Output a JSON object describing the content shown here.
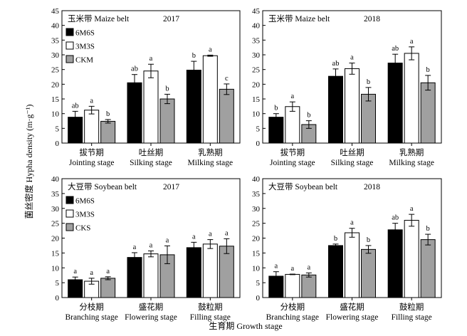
{
  "figure": {
    "ylabel": "菌丝密度 Hypha density (m·g⁻¹)",
    "xlabel": "生育期 Growth stage"
  },
  "colors": {
    "series1": "#000000",
    "series2": "#ffffff",
    "series3": "#a0a0a0"
  },
  "chart_data": [
    {
      "type": "bar",
      "title": "玉米带 Maize belt",
      "year": "2017",
      "categories": [
        [
          "拔节期",
          "Jointing stage"
        ],
        [
          "吐丝期",
          "Silking stage"
        ],
        [
          "乳熟期",
          "Milking stage"
        ]
      ],
      "ylim": [
        0,
        45
      ],
      "yticks": [
        0,
        5,
        10,
        15,
        20,
        25,
        30,
        35,
        40,
        45
      ],
      "legend": "top-left",
      "series": [
        {
          "name": "6M6S",
          "values": [
            8.8,
            20.5,
            24.8
          ],
          "errors": [
            2.0,
            2.8,
            3.0
          ],
          "labels": [
            "ab",
            "ab",
            "b"
          ]
        },
        {
          "name": "3M3S",
          "values": [
            11.2,
            24.5,
            29.7
          ],
          "errors": [
            1.3,
            2.3,
            0.2
          ],
          "labels": [
            "a",
            "a",
            "a"
          ]
        },
        {
          "name": "CKM",
          "values": [
            7.4,
            15.0,
            18.3
          ],
          "errors": [
            0.6,
            1.6,
            1.8
          ],
          "labels": [
            "b",
            "b",
            "c"
          ]
        }
      ]
    },
    {
      "type": "bar",
      "title": "玉米带 Maize belt",
      "year": "2018",
      "categories": [
        [
          "拔节期",
          "Jointing stage"
        ],
        [
          "吐丝期",
          "Silking stage"
        ],
        [
          "乳熟期",
          "Milking stage"
        ]
      ],
      "ylim": [
        0,
        45
      ],
      "yticks": [
        0,
        5,
        10,
        15,
        20,
        25,
        30,
        35,
        40,
        45
      ],
      "legend": "none",
      "series": [
        {
          "name": "6M6S",
          "values": [
            8.8,
            22.7,
            27.2
          ],
          "errors": [
            1.2,
            2.5,
            3.0
          ],
          "labels": [
            "b",
            "ab",
            "ab"
          ]
        },
        {
          "name": "3M3S",
          "values": [
            12.4,
            25.3,
            30.5
          ],
          "errors": [
            1.6,
            1.9,
            2.2
          ],
          "labels": [
            "a",
            "a",
            "a"
          ]
        },
        {
          "name": "CKM",
          "values": [
            6.3,
            16.6,
            20.5
          ],
          "errors": [
            1.3,
            2.3,
            2.5
          ],
          "labels": [
            "b",
            "b",
            "b"
          ]
        }
      ]
    },
    {
      "type": "bar",
      "title": "大豆带 Soybean belt",
      "year": "2017",
      "categories": [
        [
          "分枝期",
          "Branching stage"
        ],
        [
          "盛花期",
          "Flowering stage"
        ],
        [
          "鼓粒期",
          "Filling stage"
        ]
      ],
      "ylim": [
        0,
        40
      ],
      "yticks": [
        0,
        5,
        10,
        15,
        20,
        25,
        30,
        35,
        40
      ],
      "legend": "top-left",
      "series": [
        {
          "name": "6M6S",
          "values": [
            6.0,
            13.5,
            16.8
          ],
          "errors": [
            0.9,
            1.6,
            1.8
          ],
          "labels": [
            "a",
            "a",
            "a"
          ]
        },
        {
          "name": "3M3S",
          "values": [
            5.5,
            14.7,
            18.0
          ],
          "errors": [
            1.0,
            1.0,
            1.5
          ],
          "labels": [
            "a",
            "a",
            "a"
          ]
        },
        {
          "name": "CKS",
          "values": [
            6.5,
            14.4,
            17.3
          ],
          "errors": [
            0.5,
            3.0,
            2.5
          ],
          "labels": [
            "a",
            "a",
            "a"
          ]
        }
      ]
    },
    {
      "type": "bar",
      "title": "大豆带 Soybean belt",
      "year": "2018",
      "categories": [
        [
          "分枝期",
          "Branching stage"
        ],
        [
          "盛花期",
          "Flowering stage"
        ],
        [
          "鼓粒期",
          "Filling stage"
        ]
      ],
      "ylim": [
        0,
        40
      ],
      "yticks": [
        0,
        5,
        10,
        15,
        20,
        25,
        30,
        35,
        40
      ],
      "legend": "none",
      "series": [
        {
          "name": "6M6S",
          "values": [
            7.2,
            17.5,
            22.8
          ],
          "errors": [
            1.5,
            0.5,
            2.2
          ],
          "labels": [
            "a",
            "b",
            "ab"
          ]
        },
        {
          "name": "3M3S",
          "values": [
            7.8,
            21.8,
            26.0
          ],
          "errors": [
            0.1,
            1.5,
            2.0
          ],
          "labels": [
            "a",
            "a",
            "a"
          ]
        },
        {
          "name": "CKS",
          "values": [
            7.6,
            16.2,
            19.5
          ],
          "errors": [
            0.7,
            1.3,
            1.8
          ],
          "labels": [
            "a",
            "b",
            "b"
          ]
        }
      ]
    }
  ]
}
